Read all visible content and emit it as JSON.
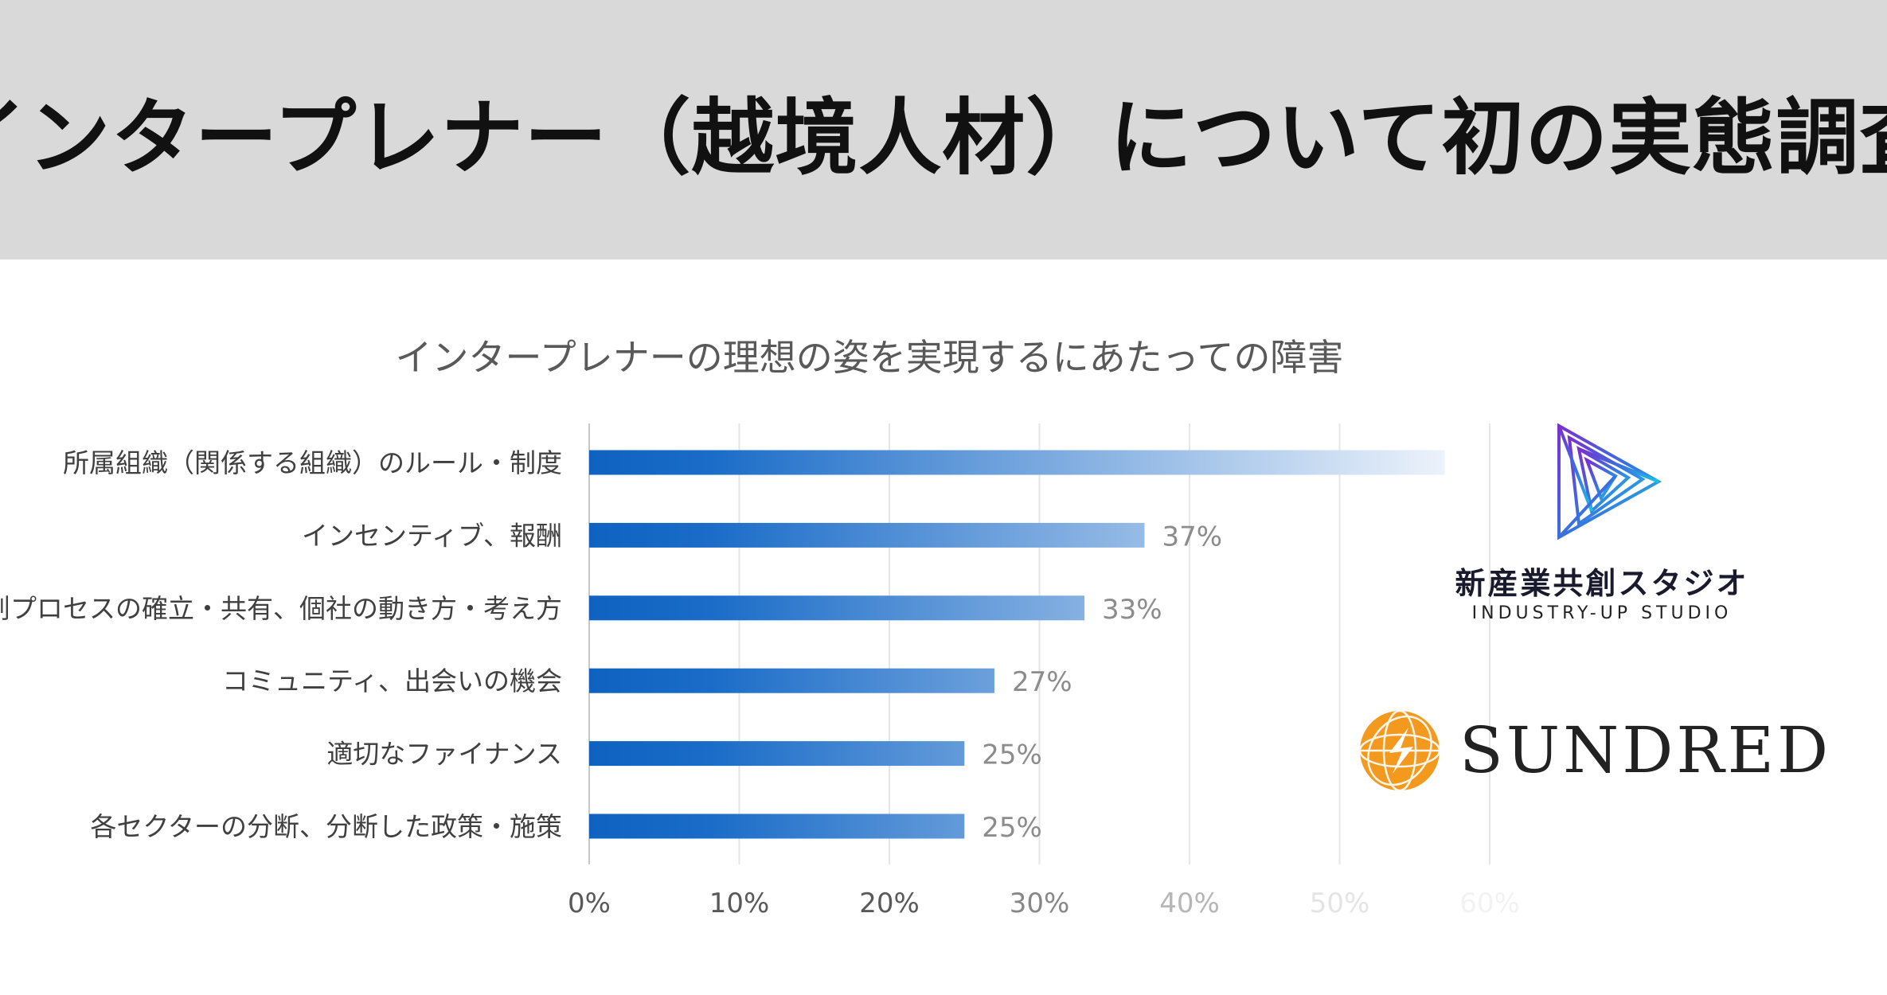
{
  "banner": {
    "title": "インタープレナー（越境人材）について初の実態調査"
  },
  "chart_data": {
    "type": "bar",
    "orientation": "horizontal",
    "title": "インタープレナーの理想の姿を実現するにあたっての障害",
    "categories": [
      "所属組織（関係する組織）のルール・制度",
      "インセンティブ、報酬",
      "共創プロセスの確立・共有、個社の動き方・考え方",
      "コミュニティ、出会いの機会",
      "適切なファイナンス",
      "各セクターの分断、分断した政策・施策"
    ],
    "values": [
      57,
      37,
      33,
      27,
      25,
      25
    ],
    "value_labels": [
      "",
      "37%",
      "33%",
      "27%",
      "25%",
      "25%"
    ],
    "unit": "%",
    "xlim": [
      0,
      60
    ],
    "ticks": [
      "0%",
      "10%",
      "20%",
      "30%",
      "40%",
      "50%",
      "60%"
    ],
    "grid": true,
    "bar_color_start": "#0f62c0",
    "bar_color_end": "#eef3fb"
  },
  "logos": {
    "industry_up": {
      "jp": "新産業共創スタジオ",
      "en": "INDUSTRY-UP STUDIO",
      "icon": "triangle-spiral-icon"
    },
    "sundred": {
      "name": "SUNDRED",
      "icon": "sun-globe-icon",
      "color": "#f39a1e"
    }
  }
}
